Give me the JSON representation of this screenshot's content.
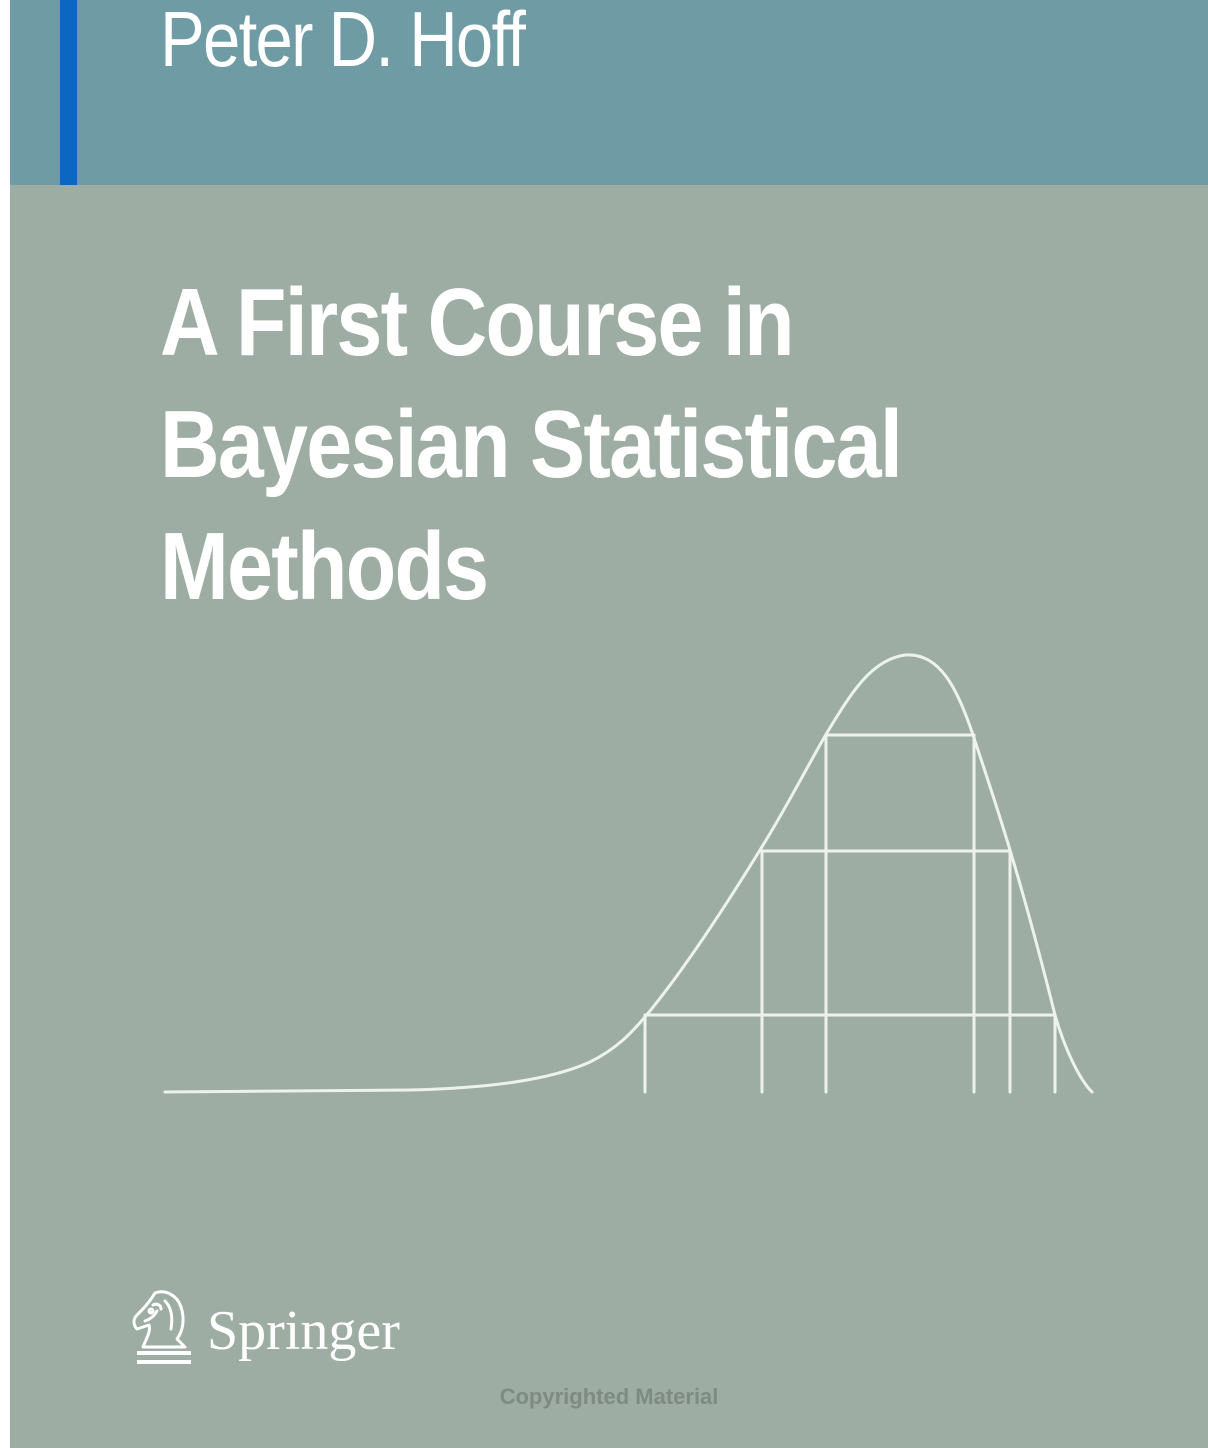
{
  "cover": {
    "author": "Peter D. Hoff",
    "title_lines": [
      "A First Course in",
      "Bayesian Statistical",
      "Methods"
    ],
    "publisher": "Springer",
    "watermark": "Copyrighted Material",
    "colors": {
      "background": "#9dada3",
      "author_band": "#6f9ba5",
      "accent_bar": "#0b67c2",
      "text": "#ffffff"
    },
    "illustration": "density curve with nested horizontal interval lines"
  }
}
